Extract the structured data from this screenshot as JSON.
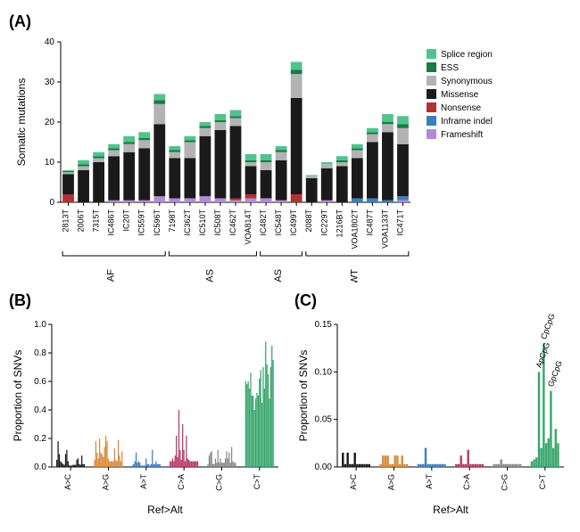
{
  "panelA": {
    "label": "(A)",
    "type": "stacked-bar",
    "ylabel": "Somatic mutations",
    "ylim": [
      0,
      40
    ],
    "ytick_step": 10,
    "categories_in_order": [
      "Frameshift",
      "Inframe indel",
      "Nonsense",
      "Missense",
      "Synonymous",
      "ESS",
      "Splice region"
    ],
    "colors": {
      "Splice region": "#4fc48b",
      "ESS": "#1a7a47",
      "Synonymous": "#b3b3b3",
      "Missense": "#1a1a1a",
      "Nonsense": "#b03232",
      "Inframe indel": "#3a7fbf",
      "Frameshift": "#b18bd9"
    },
    "legend_order": [
      "Splice region",
      "ESS",
      "Synonymous",
      "Missense",
      "Nonsense",
      "Inframe indel",
      "Frameshift"
    ],
    "groups": [
      {
        "name": "BRAF",
        "samples": [
          "2813T",
          "2006T",
          "7315T",
          "IC486T",
          "IC20T",
          "IC559T",
          "IC596T"
        ]
      },
      {
        "name": "KRAS",
        "samples": [
          "7198T",
          "IC362T",
          "IC510T",
          "IC508T",
          "IC462T",
          "VOA814T"
        ]
      },
      {
        "name": "NRAS",
        "samples": [
          "IC482T",
          "IC548T",
          "IC499T"
        ]
      },
      {
        "name": "WT",
        "samples": [
          "2088T",
          "IC229T",
          "1216BT",
          "VOA1802T",
          "IC487T",
          "VOA1133T",
          "IC471T"
        ]
      }
    ],
    "data": {
      "2813T": {
        "Frameshift": 0,
        "Inframe indel": 0,
        "Nonsense": 2,
        "Missense": 5,
        "Synonymous": 0.5,
        "ESS": 0.3,
        "Splice region": 0.2
      },
      "2006T": {
        "Frameshift": 0,
        "Inframe indel": 0,
        "Nonsense": 0,
        "Missense": 8,
        "Synonymous": 1,
        "ESS": 0.5,
        "Splice region": 1
      },
      "7315T": {
        "Frameshift": 0,
        "Inframe indel": 0,
        "Nonsense": 0,
        "Missense": 10,
        "Synonymous": 1,
        "ESS": 0.5,
        "Splice region": 1
      },
      "IC486T": {
        "Frameshift": 0.5,
        "Inframe indel": 0,
        "Nonsense": 0,
        "Missense": 11,
        "Synonymous": 1.5,
        "ESS": 0.5,
        "Splice region": 1
      },
      "IC20T": {
        "Frameshift": 0.5,
        "Inframe indel": 0,
        "Nonsense": 0,
        "Missense": 12,
        "Synonymous": 2,
        "ESS": 0.5,
        "Splice region": 1.5
      },
      "IC559T": {
        "Frameshift": 0.5,
        "Inframe indel": 0,
        "Nonsense": 0,
        "Missense": 13,
        "Synonymous": 2,
        "ESS": 0.5,
        "Splice region": 1.5
      },
      "IC596T": {
        "Frameshift": 1.5,
        "Inframe indel": 0,
        "Nonsense": 0,
        "Missense": 18,
        "Synonymous": 5,
        "ESS": 1,
        "Splice region": 1.5
      },
      "7198T": {
        "Frameshift": 1,
        "Inframe indel": 0,
        "Nonsense": 0,
        "Missense": 10,
        "Synonymous": 1.5,
        "ESS": 0.5,
        "Splice region": 1
      },
      "IC362T": {
        "Frameshift": 1,
        "Inframe indel": 0,
        "Nonsense": 0,
        "Missense": 10,
        "Synonymous": 4,
        "ESS": 0.5,
        "Splice region": 1
      },
      "IC510T": {
        "Frameshift": 1.5,
        "Inframe indel": 0,
        "Nonsense": 0,
        "Missense": 15,
        "Synonymous": 2,
        "ESS": 0.5,
        "Splice region": 1
      },
      "IC508T": {
        "Frameshift": 1,
        "Inframe indel": 0,
        "Nonsense": 0,
        "Missense": 17,
        "Synonymous": 2,
        "ESS": 0.5,
        "Splice region": 1.5
      },
      "IC462T": {
        "Frameshift": 0.5,
        "Inframe indel": 0,
        "Nonsense": 0.5,
        "Missense": 18,
        "Synonymous": 2,
        "ESS": 0.5,
        "Splice region": 1.5
      },
      "VOA814T": {
        "Frameshift": 1,
        "Inframe indel": 0,
        "Nonsense": 1,
        "Missense": 7,
        "Synonymous": 1,
        "ESS": 0.5,
        "Splice region": 1.5
      },
      "IC482T": {
        "Frameshift": 1,
        "Inframe indel": 0,
        "Nonsense": 0,
        "Missense": 7,
        "Synonymous": 2,
        "ESS": 0.5,
        "Splice region": 1.5
      },
      "IC548T": {
        "Frameshift": 0.5,
        "Inframe indel": 0,
        "Nonsense": 0,
        "Missense": 10,
        "Synonymous": 2,
        "ESS": 0.5,
        "Splice region": 1
      },
      "IC499T": {
        "Frameshift": 0,
        "Inframe indel": 0,
        "Nonsense": 2,
        "Missense": 24,
        "Synonymous": 6,
        "ESS": 1,
        "Splice region": 2
      },
      "2088T": {
        "Frameshift": 0,
        "Inframe indel": 0,
        "Nonsense": 0,
        "Missense": 6,
        "Synonymous": 0.5,
        "ESS": 0,
        "Splice region": 0.3
      },
      "IC229T": {
        "Frameshift": 0.5,
        "Inframe indel": 0,
        "Nonsense": 0,
        "Missense": 8,
        "Synonymous": 1,
        "ESS": 0,
        "Splice region": 0.5
      },
      "1216BT": {
        "Frameshift": 0,
        "Inframe indel": 0,
        "Nonsense": 0,
        "Missense": 9,
        "Synonymous": 1,
        "ESS": 0.5,
        "Splice region": 1
      },
      "VOA1802T": {
        "Frameshift": 0,
        "Inframe indel": 1,
        "Nonsense": 0,
        "Missense": 10,
        "Synonymous": 2,
        "ESS": 0.5,
        "Splice region": 1
      },
      "IC487T": {
        "Frameshift": 0,
        "Inframe indel": 1,
        "Nonsense": 0,
        "Missense": 14,
        "Synonymous": 2,
        "ESS": 0.5,
        "Splice region": 1
      },
      "VOA1133T": {
        "Frameshift": 0,
        "Inframe indel": 0.5,
        "Nonsense": 0,
        "Missense": 17,
        "Synonymous": 2,
        "ESS": 0.5,
        "Splice region": 2
      },
      "IC471T": {
        "Frameshift": 0.5,
        "Inframe indel": 1,
        "Nonsense": 0,
        "Missense": 13,
        "Synonymous": 4,
        "ESS": 1,
        "Splice region": 2
      }
    }
  },
  "panelB": {
    "label": "(B)",
    "type": "grouped-bar",
    "ylabel": "Proportion of SNVs",
    "xlabel": "Ref>Alt",
    "ylim": [
      0,
      1.0
    ],
    "ytick_step": 0.2,
    "categories": [
      "A>C",
      "A>G",
      "A>T",
      "C>A",
      "C>G",
      "C>T"
    ],
    "colors": {
      "A>C": "#1a1a1a",
      "A>G": "#d98a3a",
      "A>T": "#3a7fbf",
      "C>A": "#b53a6a",
      "C>G": "#8a8a8a",
      "C>T": "#3aa66f"
    },
    "bars_per_group": 23,
    "data": {
      "A>C": [
        0.05,
        0.18,
        0.09,
        0.04,
        0.03,
        0.02,
        0.015,
        0.09,
        0.12,
        0.04,
        0.01,
        0.01,
        0.01,
        0.015,
        0.015,
        0.015,
        0.05,
        0.06,
        0.02,
        0.015,
        0.08,
        0.02,
        0.02
      ],
      "A>G": [
        0.05,
        0.18,
        0.1,
        0.06,
        0.2,
        0.1,
        0.09,
        0.07,
        0.14,
        0.22,
        0.18,
        0.06,
        0.04,
        0.04,
        0.04,
        0.04,
        0.13,
        0.05,
        0.04,
        0.19,
        0.08,
        0.04,
        0.11
      ],
      "A>T": [
        0.01,
        0.02,
        0.04,
        0.1,
        0.03,
        0.04,
        0.03,
        0.01,
        0.01,
        0.01,
        0.01,
        0.06,
        0.02,
        0.02,
        0.01,
        0.02,
        0.12,
        0.02,
        0.02,
        0.04,
        0.02,
        0.02,
        0.02
      ],
      "C>A": [
        0.04,
        0.04,
        0.06,
        0.04,
        0.08,
        0.22,
        0.07,
        0.4,
        0.12,
        0.05,
        0.3,
        0.12,
        0.04,
        0.22,
        0.06,
        0.05,
        0.04,
        0.04,
        0.04,
        0.04,
        0.04,
        0.04,
        0.04
      ],
      "C>G": [
        0.02,
        0.08,
        0.1,
        0.11,
        0.02,
        0.02,
        0.06,
        0.03,
        0.12,
        0.03,
        0.06,
        0.03,
        0.03,
        0.03,
        0.06,
        0.11,
        0.06,
        0.1,
        0.03,
        0.14,
        0.04,
        0.03,
        0.03
      ],
      "C>T": [
        0.6,
        0.58,
        0.6,
        0.55,
        0.66,
        0.5,
        0.5,
        0.4,
        0.48,
        0.52,
        0.5,
        0.62,
        0.68,
        0.45,
        0.7,
        0.55,
        0.88,
        0.72,
        0.65,
        0.48,
        0.7,
        0.85,
        0.75
      ]
    }
  },
  "panelC": {
    "label": "(C)",
    "type": "grouped-bar",
    "ylabel": "Proportion of SNVs",
    "xlabel": "Ref>Alt",
    "ylim": [
      0,
      0.15
    ],
    "ytick_step": 0.05,
    "categories": [
      "A>C",
      "A>G",
      "A>T",
      "C>A",
      "C>G",
      "C>T"
    ],
    "colors": {
      "A>C": "#1a1a1a",
      "A>G": "#d98a3a",
      "A>T": "#3a7fbf",
      "C>A": "#b53a6a",
      "C>G": "#8a8a8a",
      "C>T": "#3aa66f"
    },
    "bars_per_group": 12,
    "annotations": [
      {
        "text": "ApCpG",
        "group": "C>T",
        "bar_index": 3
      },
      {
        "text": "CpCpG",
        "group": "C>T",
        "bar_index": 5
      },
      {
        "text": "GpCpG",
        "group": "C>T",
        "bar_index": 8
      }
    ],
    "data": {
      "A>C": [
        0.015,
        0.003,
        0.015,
        0.003,
        0.003,
        0.015,
        0.003,
        0.003,
        0.003,
        0.003,
        0.003,
        0.003
      ],
      "A>G": [
        0.003,
        0.012,
        0.012,
        0.012,
        0.003,
        0.003,
        0.012,
        0.012,
        0.003,
        0.012,
        0.003,
        0.003
      ],
      "A>T": [
        0.003,
        0.003,
        0.003,
        0.02,
        0.003,
        0.003,
        0.003,
        0.003,
        0.003,
        0.003,
        0.003,
        0.003
      ],
      "C>A": [
        0.003,
        0.003,
        0.012,
        0.003,
        0.003,
        0.018,
        0.003,
        0.003,
        0.003,
        0.003,
        0.003,
        0.003
      ],
      "C>G": [
        0.003,
        0.003,
        0.003,
        0.008,
        0.003,
        0.003,
        0.003,
        0.003,
        0.003,
        0.003,
        0.003,
        0.003
      ],
      "C>T": [
        0.006,
        0.008,
        0.01,
        0.1,
        0.02,
        0.13,
        0.025,
        0.03,
        0.08,
        0.02,
        0.04,
        0.025
      ]
    }
  }
}
